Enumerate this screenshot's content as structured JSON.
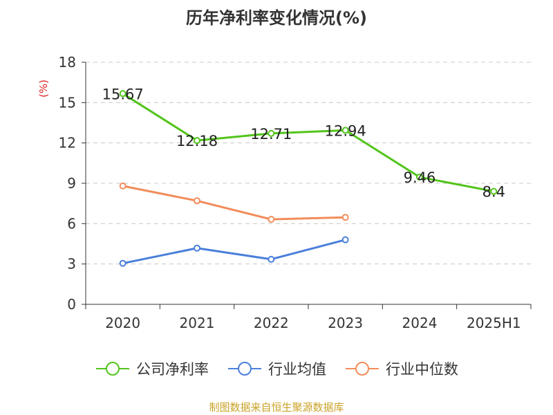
{
  "title": "历年净利率变化情况(%)",
  "source_note": "制图数据来自恒生聚源数据库",
  "chart_data": {
    "type": "line",
    "title": "历年净利率变化情况(%)",
    "ylabel": "(%)",
    "xlabel": "",
    "categories": [
      "2020",
      "2021",
      "2022",
      "2023",
      "2024",
      "2025H1"
    ],
    "ylim": [
      0,
      18
    ],
    "yticks": [
      0,
      3,
      6,
      9,
      12,
      15,
      18
    ],
    "grid": true,
    "legend_position": "bottom",
    "series": [
      {
        "name": "公司净利率",
        "color": "#52c41a",
        "values": [
          15.67,
          12.18,
          12.71,
          12.94,
          9.46,
          8.4
        ],
        "labels": [
          "15.67",
          "12.18",
          "12.71",
          "12.94",
          "9.46",
          "8.4"
        ]
      },
      {
        "name": "行业均值",
        "color": "#4a7fdb",
        "values": [
          3.05,
          4.18,
          3.35,
          4.8,
          null,
          null
        ]
      },
      {
        "name": "行业中位数",
        "color": "#f28c5a",
        "values": [
          8.8,
          7.7,
          6.32,
          6.47,
          null,
          null
        ]
      }
    ]
  }
}
